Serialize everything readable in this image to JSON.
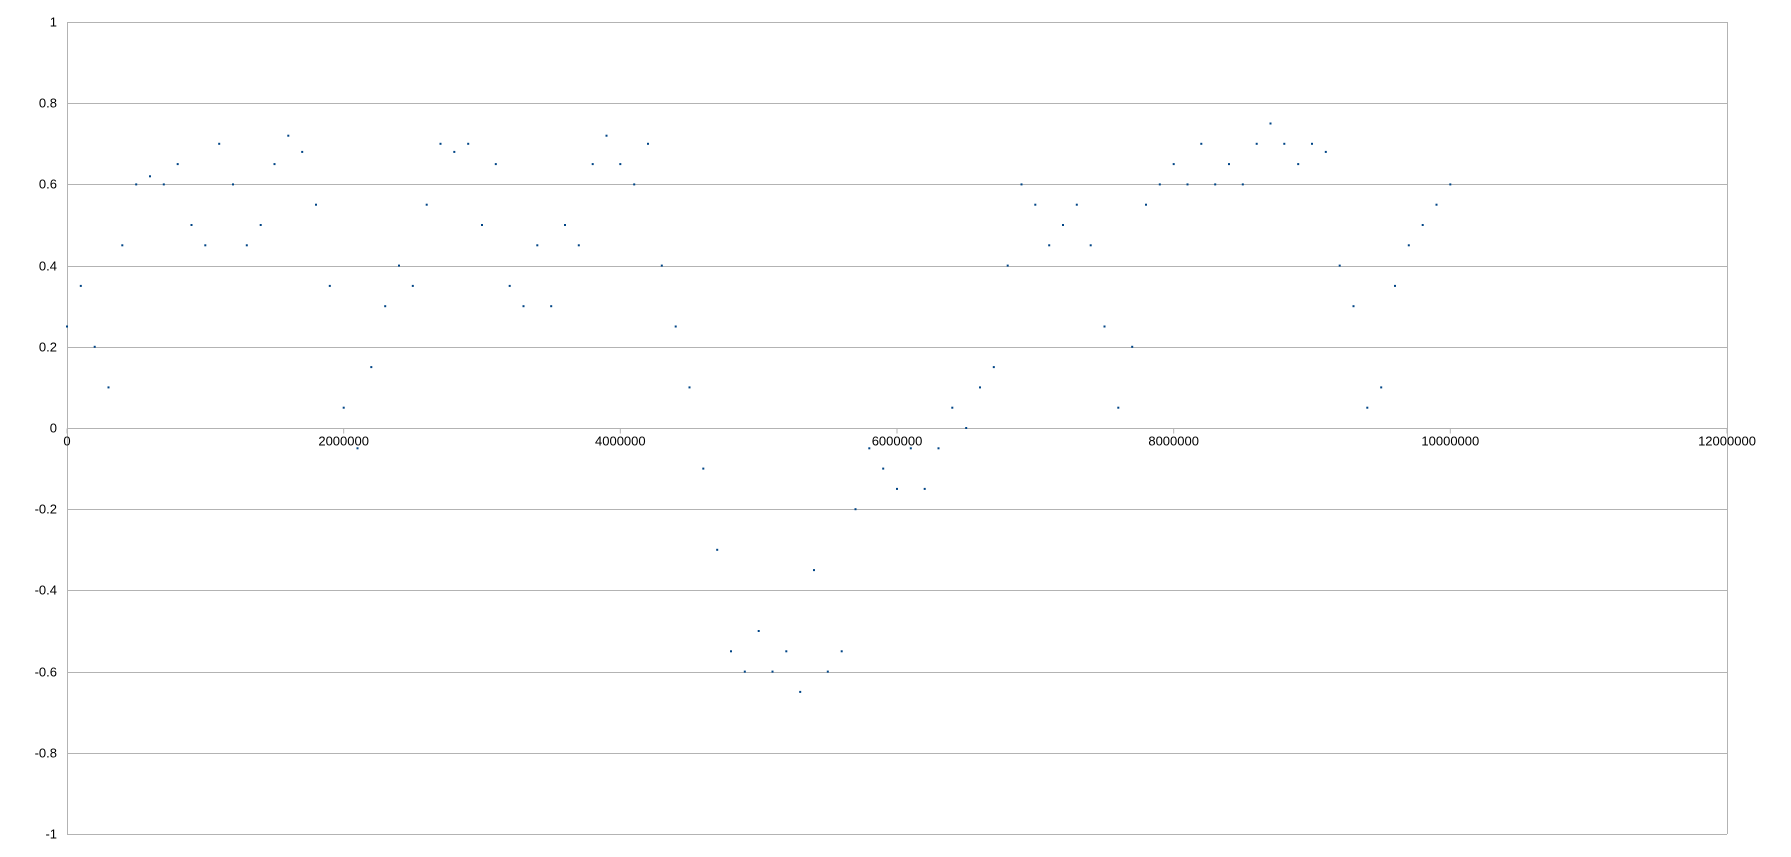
{
  "chart_data": {
    "type": "scatter",
    "title": "",
    "xlabel": "",
    "ylabel": "",
    "xlim": [
      0,
      12000000
    ],
    "ylim": [
      -1,
      1
    ],
    "x_ticks": [
      0,
      2000000,
      4000000,
      6000000,
      8000000,
      10000000,
      12000000
    ],
    "x_tick_labels": [
      "0",
      "2000000",
      "4000000",
      "6000000",
      "8000000",
      "10000000",
      "12000000"
    ],
    "y_ticks": [
      -1,
      -0.8,
      -0.6,
      -0.4,
      -0.2,
      0,
      0.2,
      0.4,
      0.6,
      0.8,
      1
    ],
    "y_tick_labels": [
      "-1",
      "-0.8",
      "-0.6",
      "-0.4",
      "-0.2",
      "0",
      "0.2",
      "0.4",
      "0.6",
      "0.8",
      "1"
    ],
    "grid": "horizontal",
    "legend": "none",
    "marker_color": "#004586",
    "marker": "point",
    "series": [
      {
        "x": [
          0,
          100000,
          200000,
          300000,
          400000,
          500000,
          600000,
          700000,
          800000,
          900000,
          1000000,
          1100000,
          1200000,
          1300000,
          1400000,
          1500000,
          1600000,
          1700000,
          1800000,
          1900000,
          2000000,
          2100000,
          2200000,
          2300000,
          2400000,
          2500000,
          2600000,
          2700000,
          2800000,
          2900000,
          3000000,
          3100000,
          3200000,
          3300000,
          3400000,
          3500000,
          3600000,
          3700000,
          3800000,
          3900000,
          4000000,
          4100000,
          4200000,
          4300000,
          4400000,
          4500000,
          4600000,
          4700000,
          4800000,
          4900000,
          5000000,
          5100000,
          5200000,
          5300000,
          5400000,
          5500000,
          5600000,
          5700000,
          5800000,
          5900000,
          6000000,
          6100000,
          6200000,
          6300000,
          6400000,
          6500000,
          6600000,
          6700000,
          6800000,
          6900000,
          7000000,
          7100000,
          7200000,
          7300000,
          7400000,
          7500000,
          7600000,
          7700000,
          7800000,
          7900000,
          8000000,
          8100000,
          8200000,
          8300000,
          8400000,
          8500000,
          8600000,
          8700000,
          8800000,
          8900000,
          9000000,
          9100000,
          9200000,
          9300000,
          9400000,
          9500000,
          9600000,
          9700000,
          9800000,
          9900000,
          10000000
        ],
        "y": [
          0.25,
          0.35,
          0.2,
          0.1,
          0.45,
          0.6,
          0.62,
          0.6,
          0.65,
          0.5,
          0.45,
          0.7,
          0.6,
          0.45,
          0.5,
          0.65,
          0.72,
          0.68,
          0.55,
          0.35,
          0.05,
          -0.05,
          0.15,
          0.3,
          0.4,
          0.35,
          0.55,
          0.7,
          0.68,
          0.7,
          0.5,
          0.65,
          0.35,
          0.3,
          0.45,
          0.3,
          0.5,
          0.45,
          0.65,
          0.72,
          0.65,
          0.6,
          0.7,
          0.4,
          0.25,
          0.1,
          -0.1,
          -0.3,
          -0.55,
          -0.6,
          -0.5,
          -0.6,
          -0.55,
          -0.65,
          -0.35,
          -0.6,
          -0.55,
          -0.2,
          -0.05,
          -0.1,
          -0.15,
          -0.05,
          -0.15,
          -0.05,
          0.05,
          0.0,
          0.1,
          0.15,
          0.4,
          0.6,
          0.55,
          0.45,
          0.5,
          0.55,
          0.45,
          0.25,
          0.05,
          0.2,
          0.55,
          0.6,
          0.65,
          0.6,
          0.7,
          0.6,
          0.65,
          0.6,
          0.7,
          0.75,
          0.7,
          0.65,
          0.7,
          0.68,
          0.4,
          0.3,
          0.05,
          0.1,
          0.35,
          0.45,
          0.5,
          0.55,
          0.6
        ]
      }
    ]
  }
}
